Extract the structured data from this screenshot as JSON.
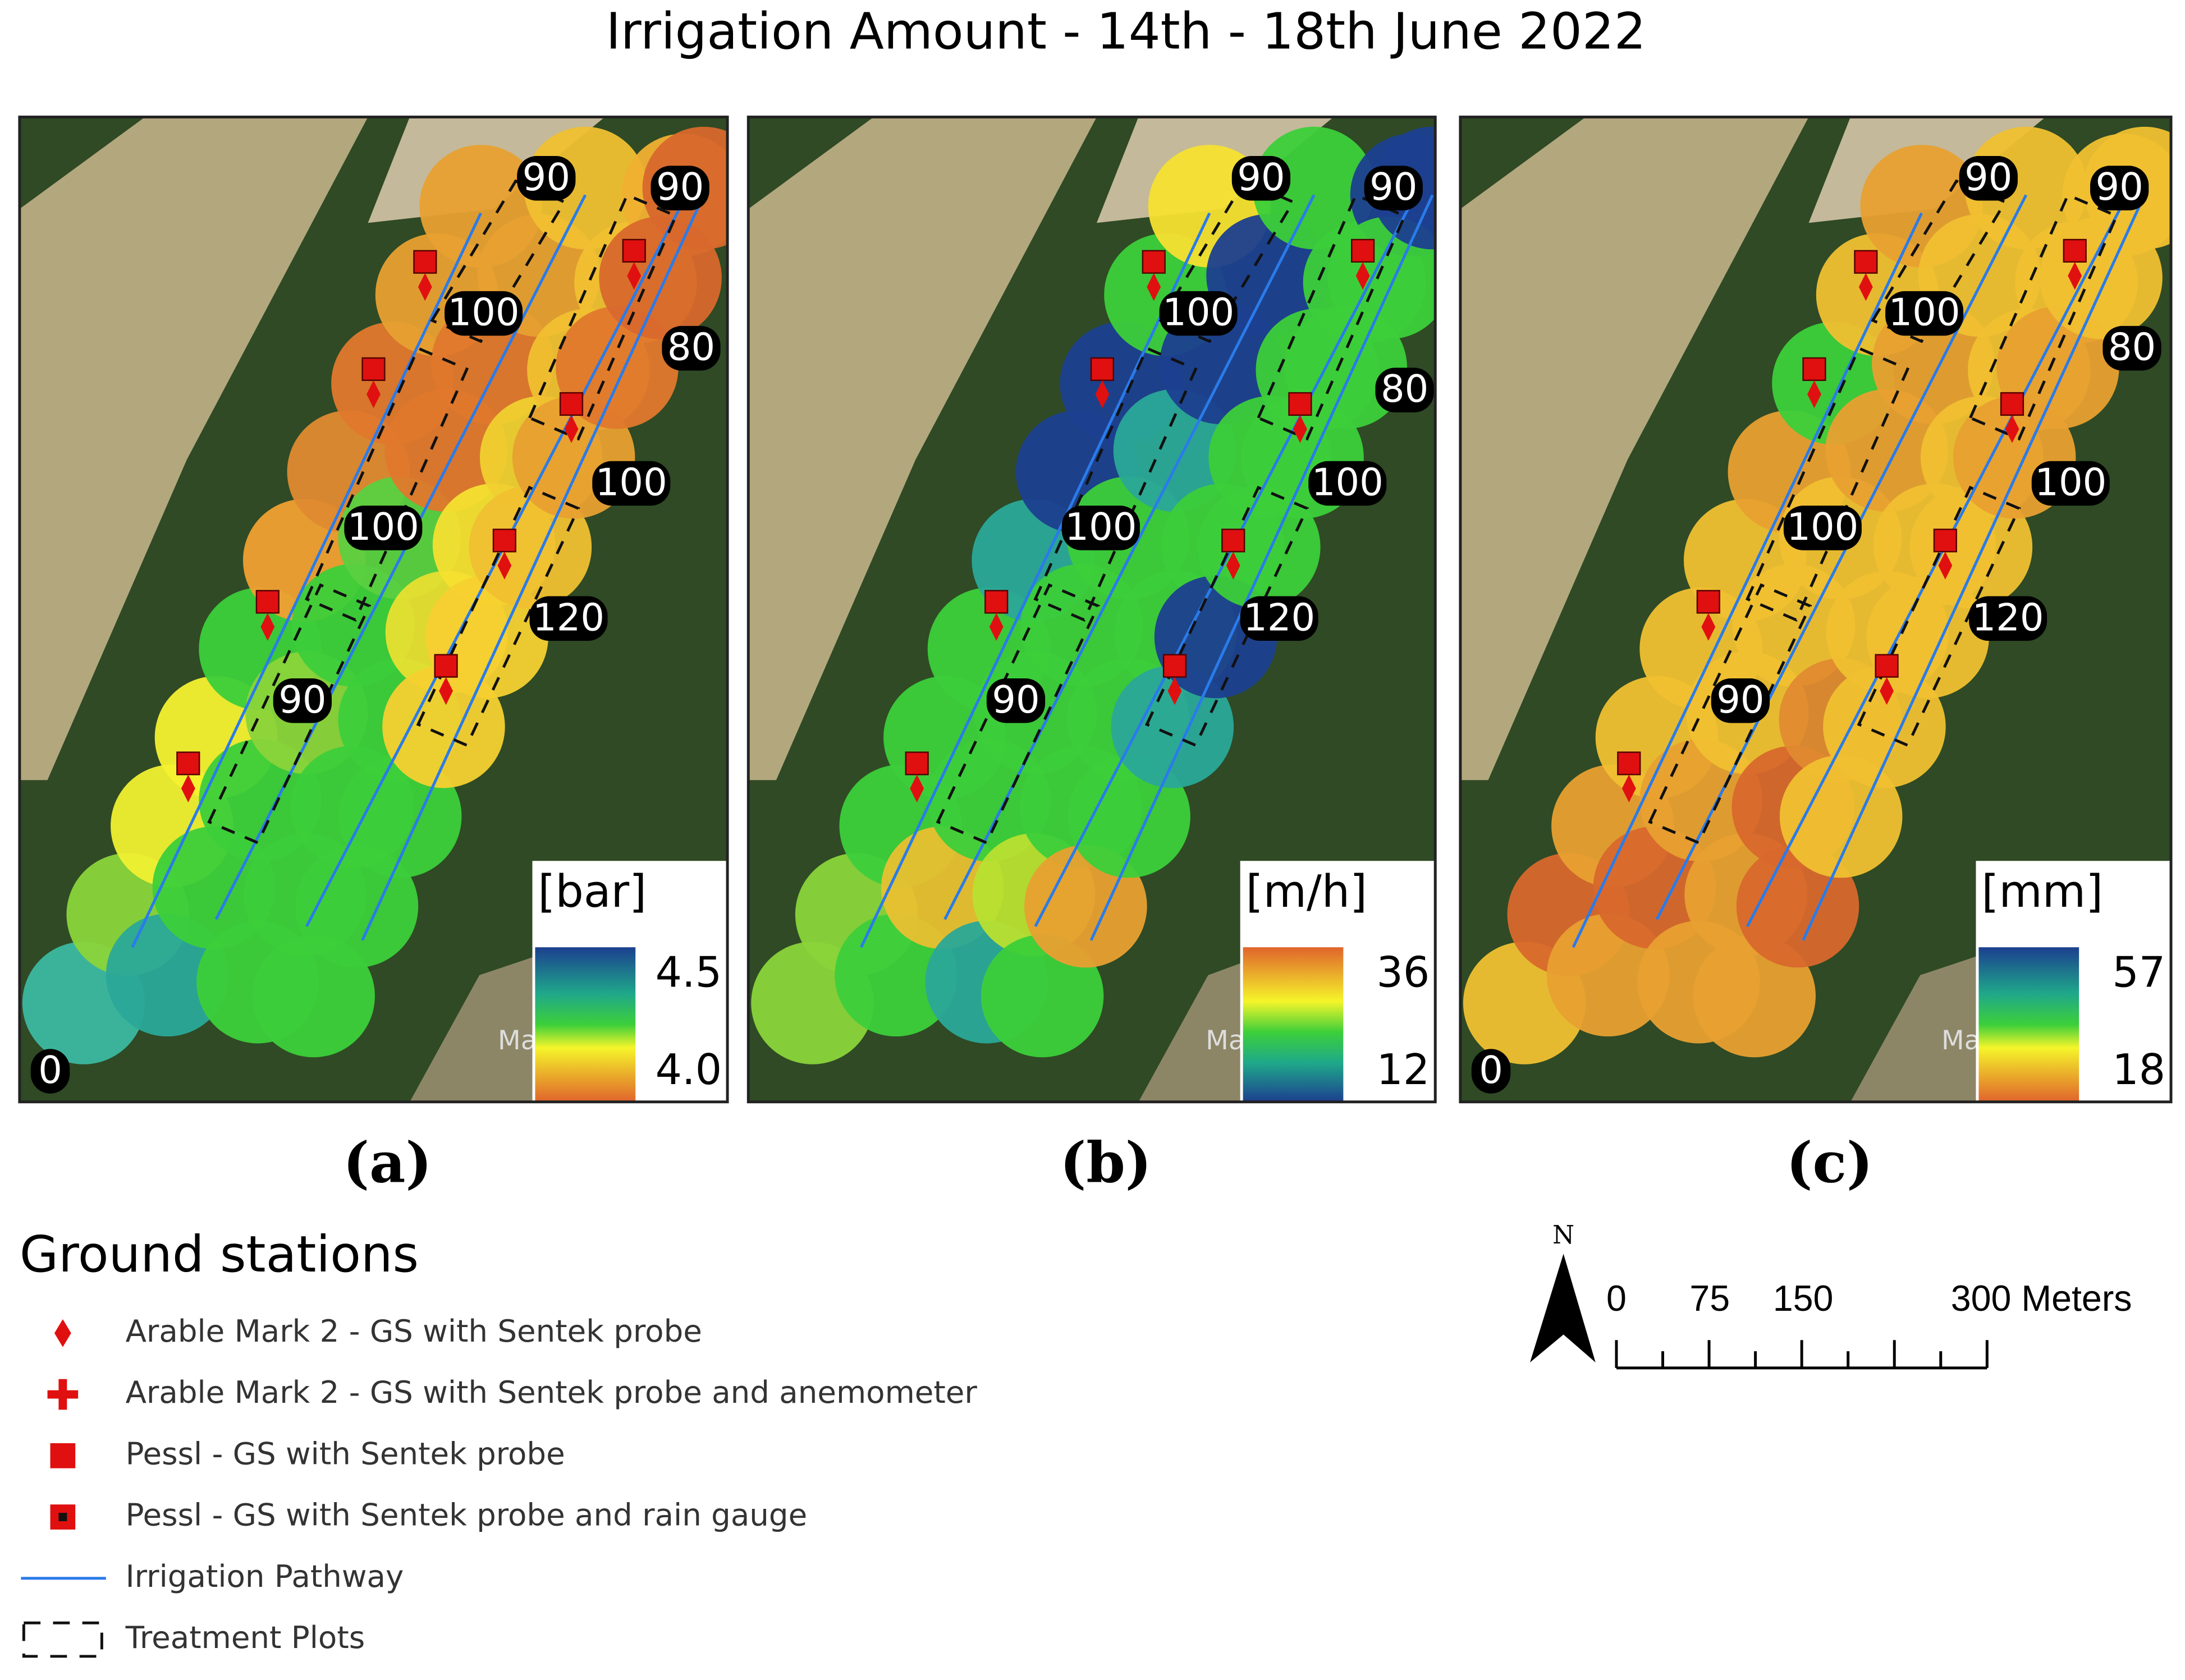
{
  "title": "Irrigation Amount - 14th - 18th June 2022",
  "panels": [
    {
      "label": "(a)",
      "unit": "[bar]",
      "legend_max": "4.5",
      "legend_min": "4.0",
      "attribution": "Maxar,",
      "plot_labels": [
        "90",
        "90",
        "100",
        "80",
        "100",
        "100",
        "120",
        "90",
        "0"
      ]
    },
    {
      "label": "(b)",
      "unit": "[m/h]",
      "legend_max": "36",
      "legend_min": "12",
      "attribution": "Maxar,",
      "plot_labels": [
        "90",
        "90",
        "100",
        "80",
        "100",
        "100",
        "120",
        "90"
      ]
    },
    {
      "label": "(c)",
      "unit": "[mm]",
      "legend_max": "57",
      "legend_min": "18",
      "attribution": "Maxar,",
      "plot_labels": [
        "90",
        "90",
        "100",
        "80",
        "100",
        "100",
        "120",
        "90",
        "0"
      ]
    }
  ],
  "legend": {
    "title": "Ground stations",
    "items": [
      "Arable Mark 2 - GS with Sentek probe",
      "Arable Mark 2 - GS with Sentek probe and anemometer",
      "Pessl - GS with Sentek probe",
      "Pessl - GS with Sentek probe and rain gauge",
      "Irrigation Pathway",
      "Treatment Plots"
    ]
  },
  "scale_bar": {
    "north": "N",
    "labels": [
      "0",
      "75",
      "150",
      "300 Meters"
    ]
  }
}
